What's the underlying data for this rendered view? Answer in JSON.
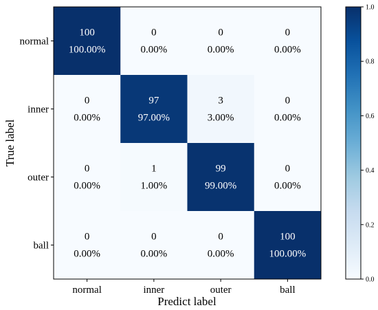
{
  "chart_data": {
    "type": "heatmap",
    "xlabel": "Predict label",
    "ylabel": "True label",
    "x_categories": [
      "normal",
      "inner",
      "outer",
      "ball"
    ],
    "y_categories": [
      "normal",
      "inner",
      "outer",
      "ball"
    ],
    "counts": [
      [
        100,
        0,
        0,
        0
      ],
      [
        0,
        97,
        3,
        0
      ],
      [
        0,
        1,
        99,
        0
      ],
      [
        0,
        0,
        0,
        100
      ]
    ],
    "percents": [
      [
        "100.00%",
        "0.00%",
        "0.00%",
        "0.00%"
      ],
      [
        "0.00%",
        "97.00%",
        "3.00%",
        "0.00%"
      ],
      [
        "0.00%",
        "1.00%",
        "99.00%",
        "0.00%"
      ],
      [
        "0.00%",
        "0.00%",
        "0.00%",
        "100.00%"
      ]
    ],
    "values": [
      [
        1.0,
        0.0,
        0.0,
        0.0
      ],
      [
        0.0,
        0.97,
        0.03,
        0.0
      ],
      [
        0.0,
        0.01,
        0.99,
        0.0
      ],
      [
        0.0,
        0.0,
        0.0,
        1.0
      ]
    ],
    "colormap": "Blues",
    "colorbar": {
      "range": [
        0.0,
        1.0
      ],
      "ticks": [
        "0.0",
        "0.2",
        "0.4",
        "0.6",
        "0.8",
        "1.0"
      ]
    },
    "grid": false
  }
}
